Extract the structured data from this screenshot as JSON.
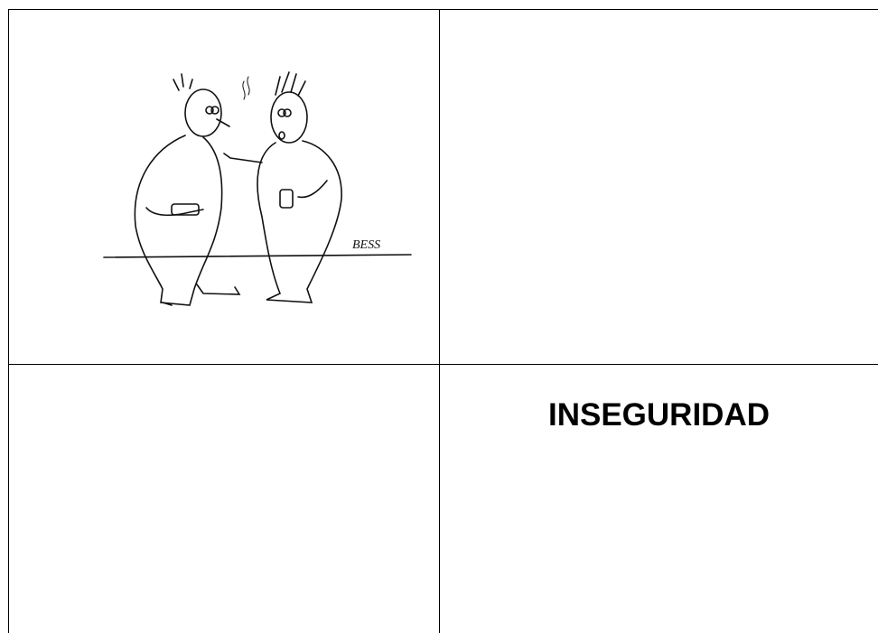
{
  "table": {
    "rows": [
      [
        {
          "image": {
            "signature": "BESS"
          }
        },
        {}
      ],
      [
        {},
        {
          "text": "INSEGURIDAD"
        }
      ]
    ]
  }
}
